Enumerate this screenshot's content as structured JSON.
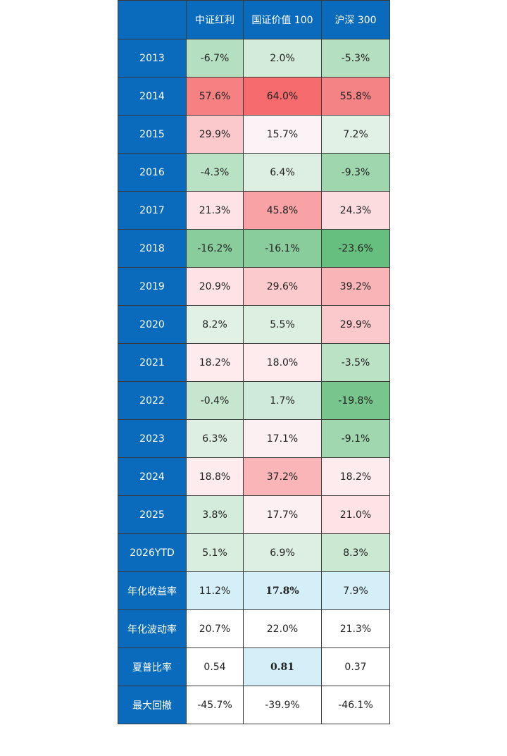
{
  "header": {
    "corner": "",
    "columns": [
      "中证红利",
      "国证价值 100",
      "沪深 300"
    ]
  },
  "rows": [
    {
      "label": "2013",
      "cells": [
        {
          "text": "-6.7%",
          "bg": "#b4dfc0"
        },
        {
          "text": "2.0%",
          "bg": "#d3ecda"
        },
        {
          "text": "-5.3%",
          "bg": "#b4dfc0"
        }
      ]
    },
    {
      "label": "2014",
      "cells": [
        {
          "text": "57.6%",
          "bg": "#f58182"
        },
        {
          "text": "64.0%",
          "bg": "#f56b6e"
        },
        {
          "text": "55.8%",
          "bg": "#f48385"
        }
      ]
    },
    {
      "label": "2015",
      "cells": [
        {
          "text": "29.9%",
          "bg": "#fbc9cc"
        },
        {
          "text": "15.7%",
          "bg": "#fcf3f6"
        },
        {
          "text": "7.2%",
          "bg": "#e2f1e6"
        }
      ]
    },
    {
      "label": "2016",
      "cells": [
        {
          "text": "-4.3%",
          "bg": "#b9e1c4"
        },
        {
          "text": "6.4%",
          "bg": "#ddefe2"
        },
        {
          "text": "-9.3%",
          "bg": "#9fd6ae"
        }
      ]
    },
    {
      "label": "2017",
      "cells": [
        {
          "text": "21.3%",
          "bg": "#fde3e6"
        },
        {
          "text": "45.8%",
          "bg": "#f8a2a5"
        },
        {
          "text": "24.3%",
          "bg": "#fcdcdf"
        }
      ]
    },
    {
      "label": "2018",
      "cells": [
        {
          "text": "-16.2%",
          "bg": "#8acd9c"
        },
        {
          "text": "-16.1%",
          "bg": "#8acd9c"
        },
        {
          "text": "-23.6%",
          "bg": "#66bf7e"
        }
      ]
    },
    {
      "label": "2019",
      "cells": [
        {
          "text": "20.9%",
          "bg": "#fde3e6"
        },
        {
          "text": "29.6%",
          "bg": "#fbcacd"
        },
        {
          "text": "39.2%",
          "bg": "#f9b4b7"
        }
      ]
    },
    {
      "label": "2020",
      "cells": [
        {
          "text": "8.2%",
          "bg": "#e2f1e6"
        },
        {
          "text": "5.5%",
          "bg": "#dcefe1"
        },
        {
          "text": "29.9%",
          "bg": "#fbc9cc"
        }
      ]
    },
    {
      "label": "2021",
      "cells": [
        {
          "text": "18.2%",
          "bg": "#fdebee"
        },
        {
          "text": "18.0%",
          "bg": "#fdebee"
        },
        {
          "text": "-3.5%",
          "bg": "#bce2c6"
        }
      ]
    },
    {
      "label": "2022",
      "cells": [
        {
          "text": "-0.4%",
          "bg": "#c6e6cf"
        },
        {
          "text": "1.7%",
          "bg": "#cfeada"
        },
        {
          "text": "-19.8%",
          "bg": "#78c68d"
        }
      ]
    },
    {
      "label": "2023",
      "cells": [
        {
          "text": "6.3%",
          "bg": "#ddefe2"
        },
        {
          "text": "17.1%",
          "bg": "#fdf0f3"
        },
        {
          "text": "-9.1%",
          "bg": "#a0d7af"
        }
      ]
    },
    {
      "label": "2024",
      "cells": [
        {
          "text": "18.8%",
          "bg": "#fdebee"
        },
        {
          "text": "37.2%",
          "bg": "#f9b5b8"
        },
        {
          "text": "18.2%",
          "bg": "#fdebee"
        }
      ]
    },
    {
      "label": "2025",
      "cells": [
        {
          "text": "3.8%",
          "bg": "#d4ecdb"
        },
        {
          "text": "17.7%",
          "bg": "#fdf0f3"
        },
        {
          "text": "21.0%",
          "bg": "#fde3e6"
        }
      ]
    },
    {
      "label": "2026YTD",
      "cells": [
        {
          "text": "5.1%",
          "bg": "#d9eede"
        },
        {
          "text": "6.9%",
          "bg": "#ddefe2"
        },
        {
          "text": "8.3%",
          "bg": "#cae8d2"
        }
      ]
    },
    {
      "label": "年化收益率",
      "cells": [
        {
          "text": "11.2%",
          "bg": "#d4eff8"
        },
        {
          "text": "17.8%",
          "bg": "#d4eff8",
          "bold": true
        },
        {
          "text": "7.9%",
          "bg": "#d4eff8"
        }
      ]
    },
    {
      "label": "年化波动率",
      "cells": [
        {
          "text": "20.7%",
          "bg": "#ffffff"
        },
        {
          "text": "22.0%",
          "bg": "#ffffff"
        },
        {
          "text": "21.3%",
          "bg": "#ffffff"
        }
      ]
    },
    {
      "label": "夏普比率",
      "cells": [
        {
          "text": "0.54",
          "bg": "#ffffff"
        },
        {
          "text": "0.81",
          "bg": "#d4eff8",
          "bold": true
        },
        {
          "text": "0.37",
          "bg": "#ffffff"
        }
      ]
    },
    {
      "label": "最大回撤",
      "cells": [
        {
          "text": "-45.7%",
          "bg": "#ffffff"
        },
        {
          "text": "-39.9%",
          "bg": "#ffffff"
        },
        {
          "text": "-46.1%",
          "bg": "#ffffff"
        }
      ]
    }
  ]
}
